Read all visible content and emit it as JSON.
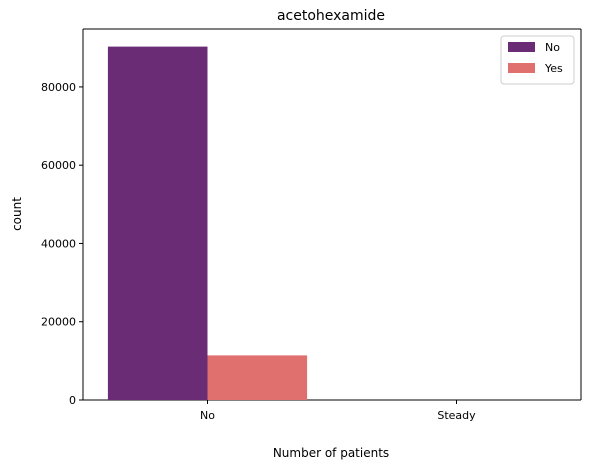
{
  "chart_data": {
    "type": "bar",
    "title": "acetohexamide",
    "xlabel": "Number of patients",
    "ylabel": "count",
    "categories": [
      "No",
      "Steady"
    ],
    "series": [
      {
        "name": "No",
        "values": [
          90300,
          0
        ],
        "color": "#6a2c75"
      },
      {
        "name": "Yes",
        "values": [
          11400,
          1
        ],
        "color": "#e0706d"
      }
    ],
    "ylim": [
      0,
      94800
    ],
    "yticks": [
      0,
      20000,
      40000,
      60000,
      80000
    ],
    "ytick_labels": [
      "0",
      "20000",
      "40000",
      "60000",
      "80000"
    ],
    "grid": false,
    "legend": {
      "position": "top-right",
      "entries": [
        "No",
        "Yes"
      ]
    }
  }
}
